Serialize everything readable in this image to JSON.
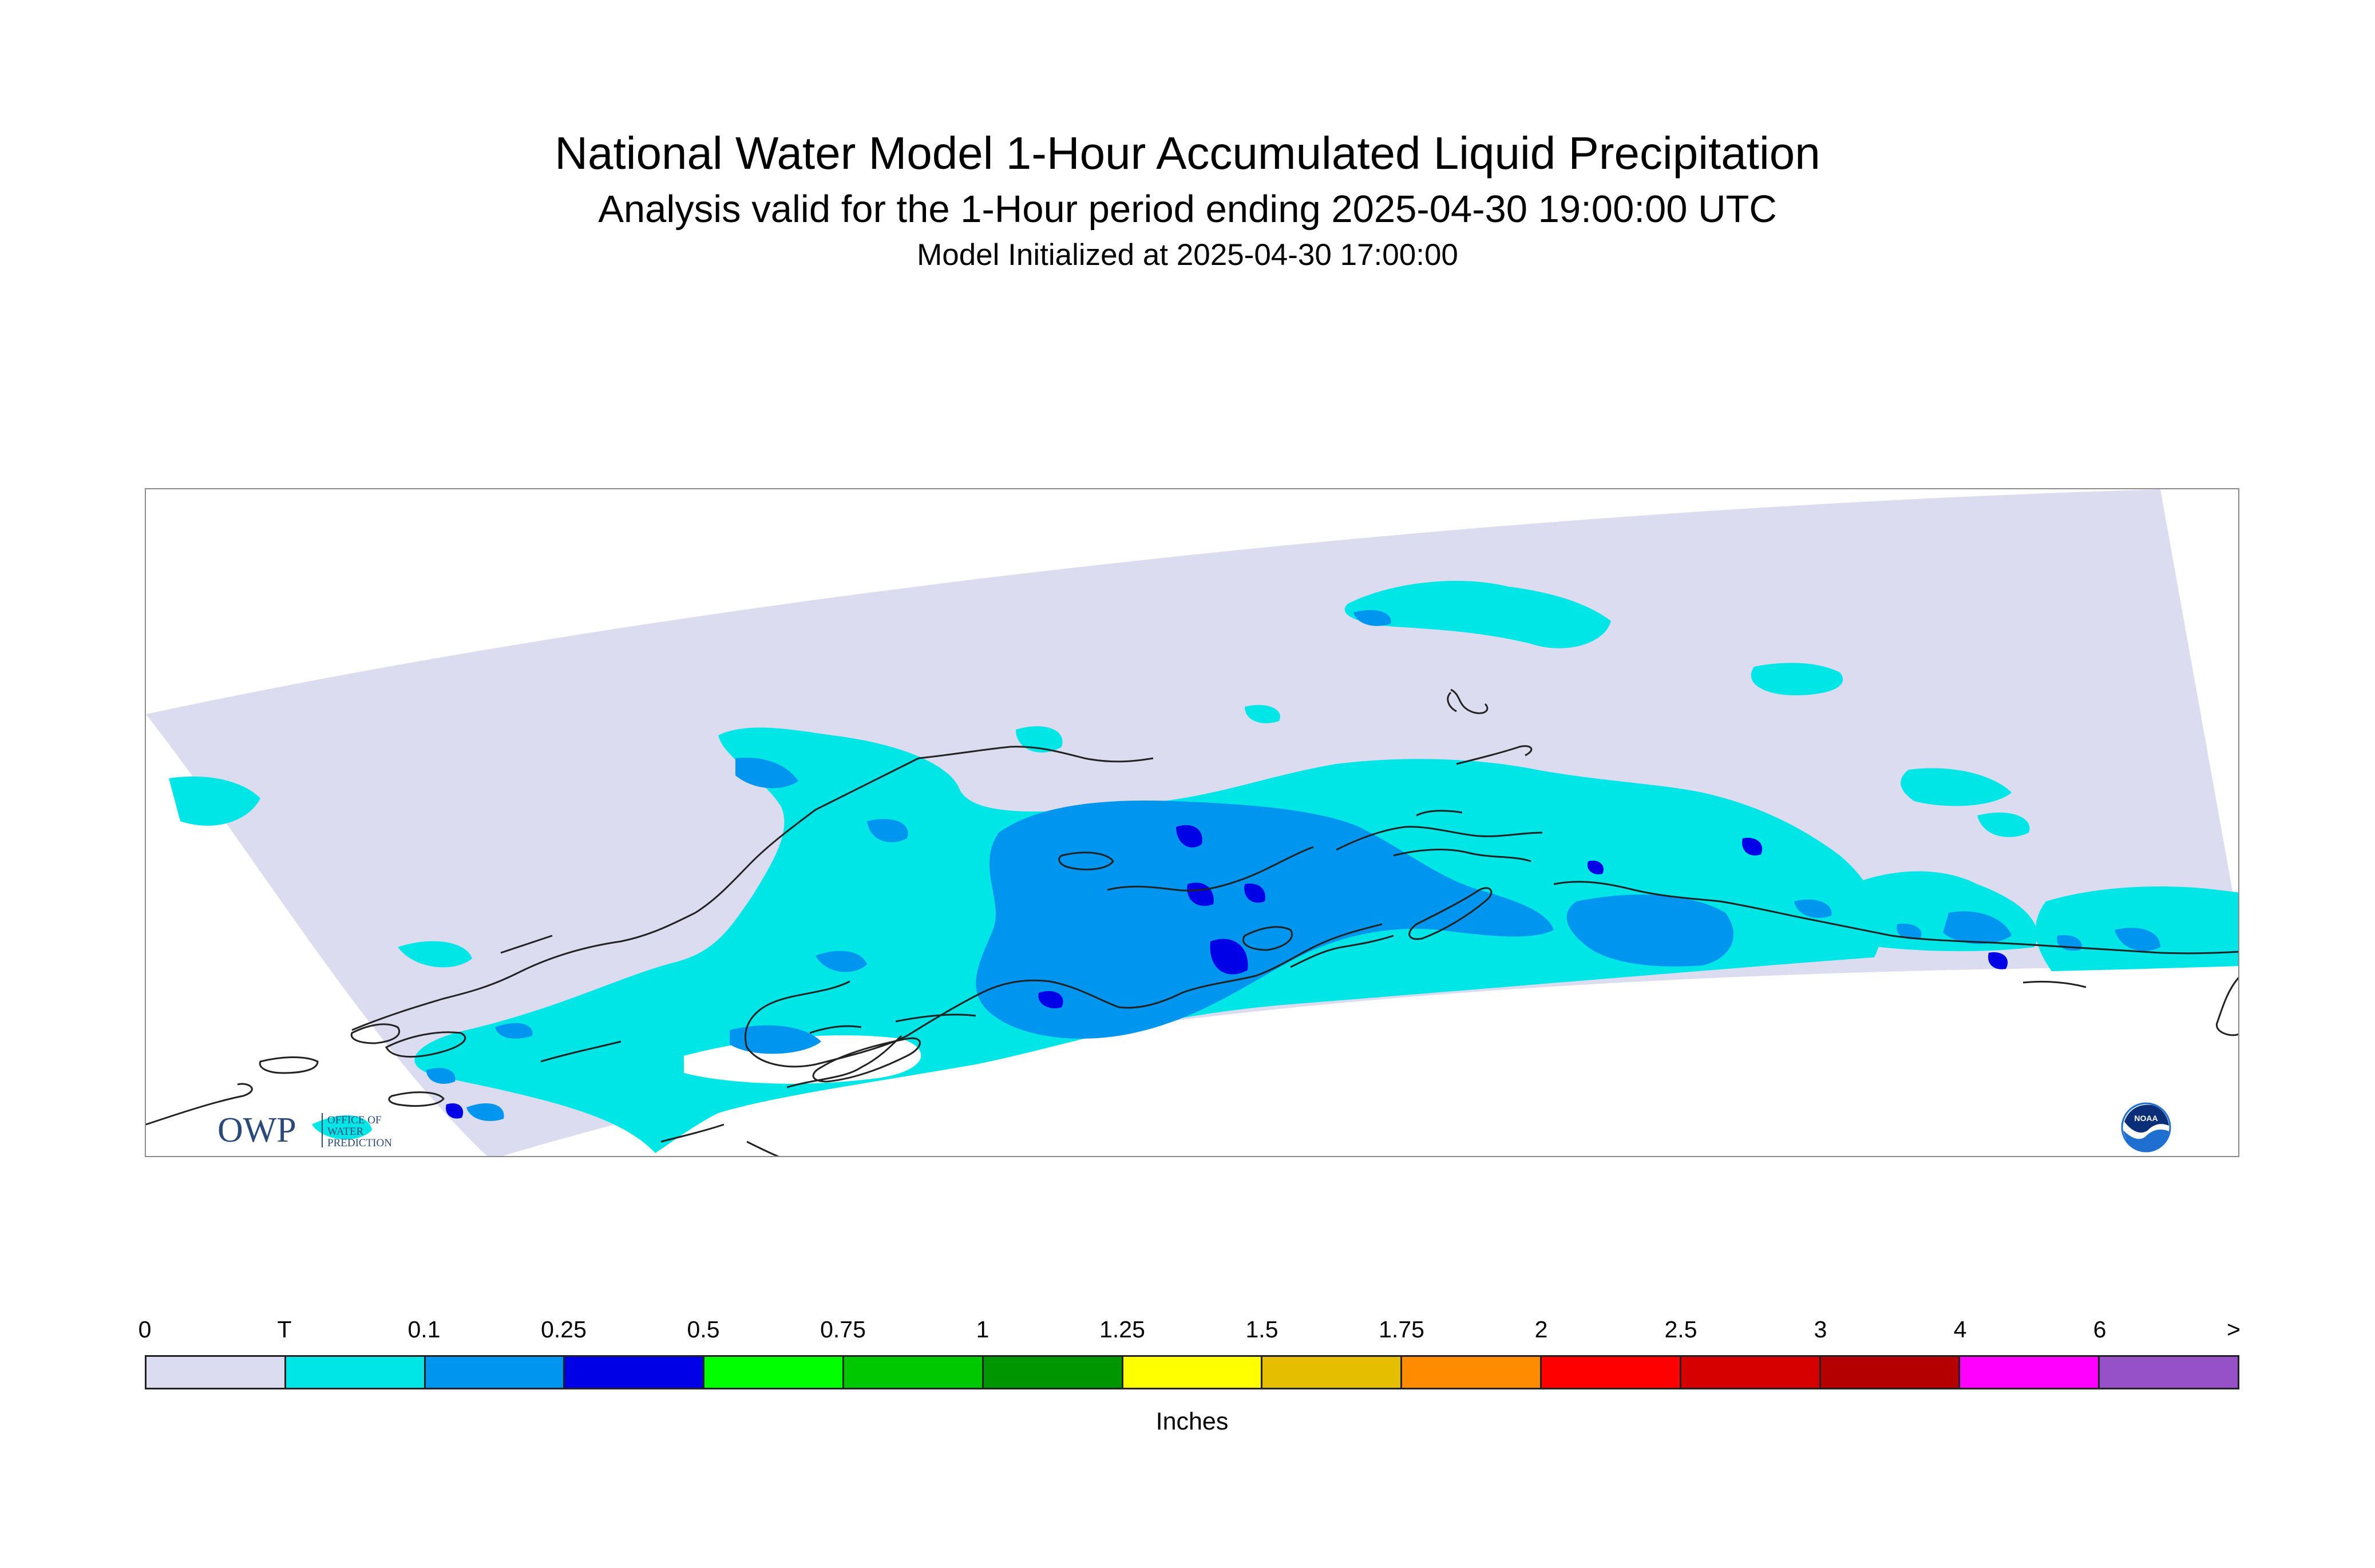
{
  "header": {
    "title": "National Water Model 1-Hour Accumulated Liquid Precipitation",
    "subtitle": "Analysis valid for the 1-Hour period ending 2025-04-30 19:00:00 UTC",
    "init": "Model Initialized at 2025-04-30 17:00:00"
  },
  "map": {
    "region_colors": {
      "domain": "#dcdcf0",
      "trace": "#00e6e6",
      "light": "#0096f0",
      "moderate": "#0000e6"
    },
    "coastline_color": "#222222"
  },
  "logos": {
    "owp_text": "OWP",
    "owp_sub": [
      "OFFICE OF",
      "WATER",
      "PREDICTION"
    ],
    "noaa_text": "NOAA",
    "owp_color": "#2a4a7a",
    "noaa_color": "#1f6fd1"
  },
  "legend": {
    "tick_labels": [
      "0",
      "T",
      "0.1",
      "0.25",
      "0.5",
      "0.75",
      "1",
      "1.25",
      "1.5",
      "1.75",
      "2",
      "2.5",
      "3",
      "4",
      "6",
      ">"
    ],
    "colors": [
      "#dcdcf0",
      "#00e6e6",
      "#0096f0",
      "#0000e6",
      "#00ff00",
      "#00c800",
      "#009600",
      "#ffff00",
      "#e6be00",
      "#ff8c00",
      "#ff0000",
      "#d70000",
      "#b40000",
      "#ff00ff",
      "#9650c8"
    ],
    "units": "Inches"
  }
}
